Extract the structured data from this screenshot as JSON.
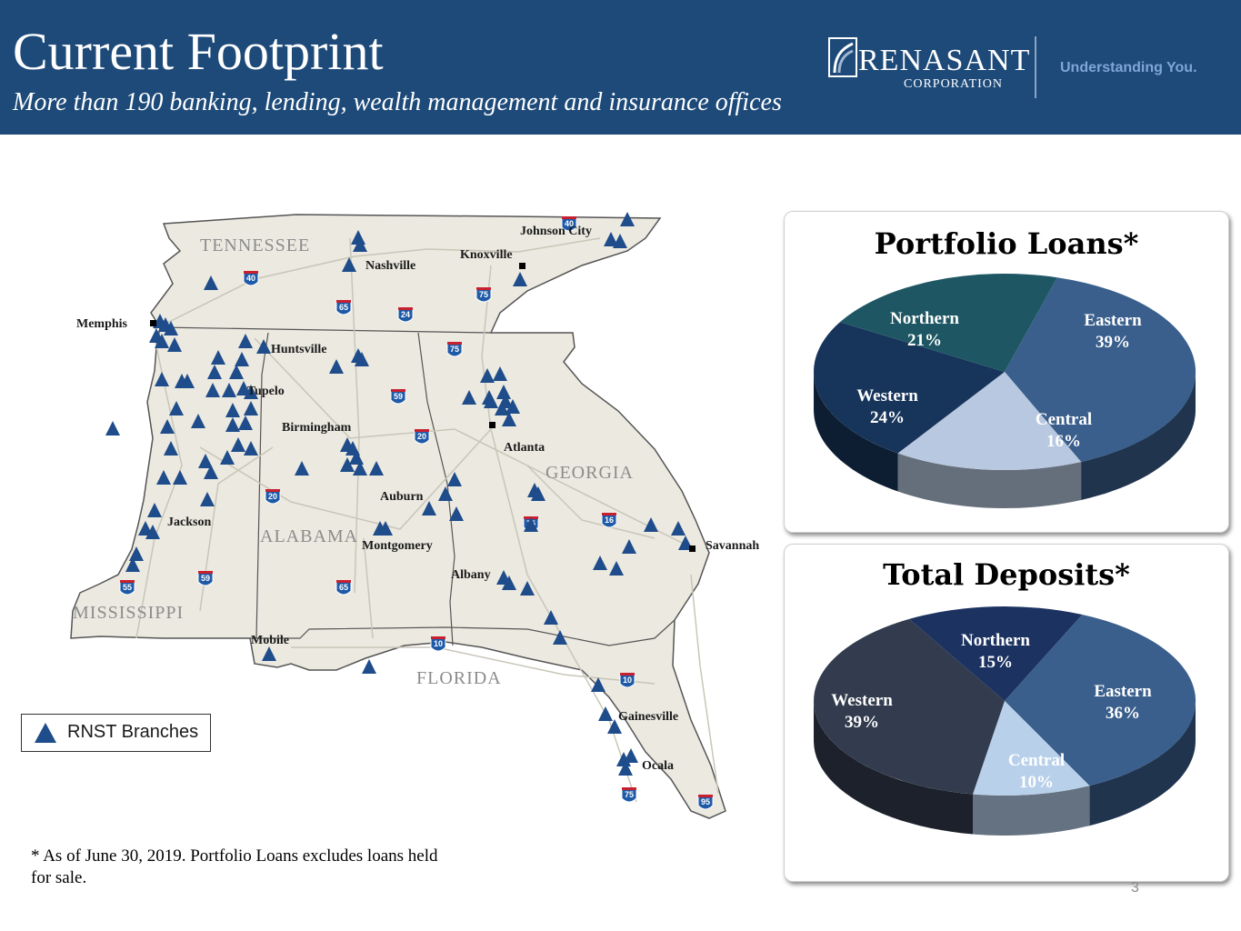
{
  "header": {
    "title": "Current Footprint",
    "subtitle": "More than 190 banking, lending, wealth management and insurance offices",
    "logo_name": "RENASANT",
    "logo_corp": "CORPORATION",
    "tagline": "Understanding You."
  },
  "map": {
    "legend_label": "RNST Branches",
    "states": [
      "TENNESSEE",
      "MISSISSIPPI",
      "ALABAMA",
      "GEORGIA",
      "FLORIDA"
    ],
    "cities": [
      "Johnson City",
      "Knoxville",
      "Nashville",
      "Memphis",
      "Huntsville",
      "Tupelo",
      "Birmingham",
      "Atlanta",
      "Jackson",
      "Auburn",
      "Montgomery",
      "Savannah",
      "Albany",
      "Mobile",
      "Gainesville",
      "Ocala"
    ],
    "interstates": [
      "40",
      "40",
      "65",
      "24",
      "75",
      "75",
      "59",
      "20",
      "20",
      "16",
      "75",
      "55",
      "59",
      "65",
      "10",
      "10",
      "75",
      "95"
    ],
    "colors": {
      "land": "#ebe9e0",
      "border": "#555555",
      "road": "#c9c6b8",
      "marker": "#1f4c8a"
    }
  },
  "chart_data": [
    {
      "type": "pie",
      "title": "Portfolio Loans*",
      "categories": [
        "Eastern",
        "Central",
        "Western",
        "Northern"
      ],
      "values": [
        39,
        16,
        24,
        21
      ],
      "value_labels": [
        "39%",
        "16%",
        "24%",
        "21%"
      ],
      "colors": [
        "#3a5f8c",
        "#b8c8e0",
        "#17345a",
        "#1e5763"
      ]
    },
    {
      "type": "pie",
      "title": "Total Deposits*",
      "categories": [
        "Northern",
        "Eastern",
        "Central",
        "Western"
      ],
      "values": [
        15,
        36,
        10,
        39
      ],
      "value_labels": [
        "15%",
        "36%",
        "10%",
        "39%"
      ],
      "colors": [
        "#1c3260",
        "#3a5f8c",
        "#b8d0ea",
        "#323c4e"
      ]
    }
  ],
  "footnote": "* As of June 30, 2019. Portfolio Loans excludes loans held for sale.",
  "page_number": "3"
}
